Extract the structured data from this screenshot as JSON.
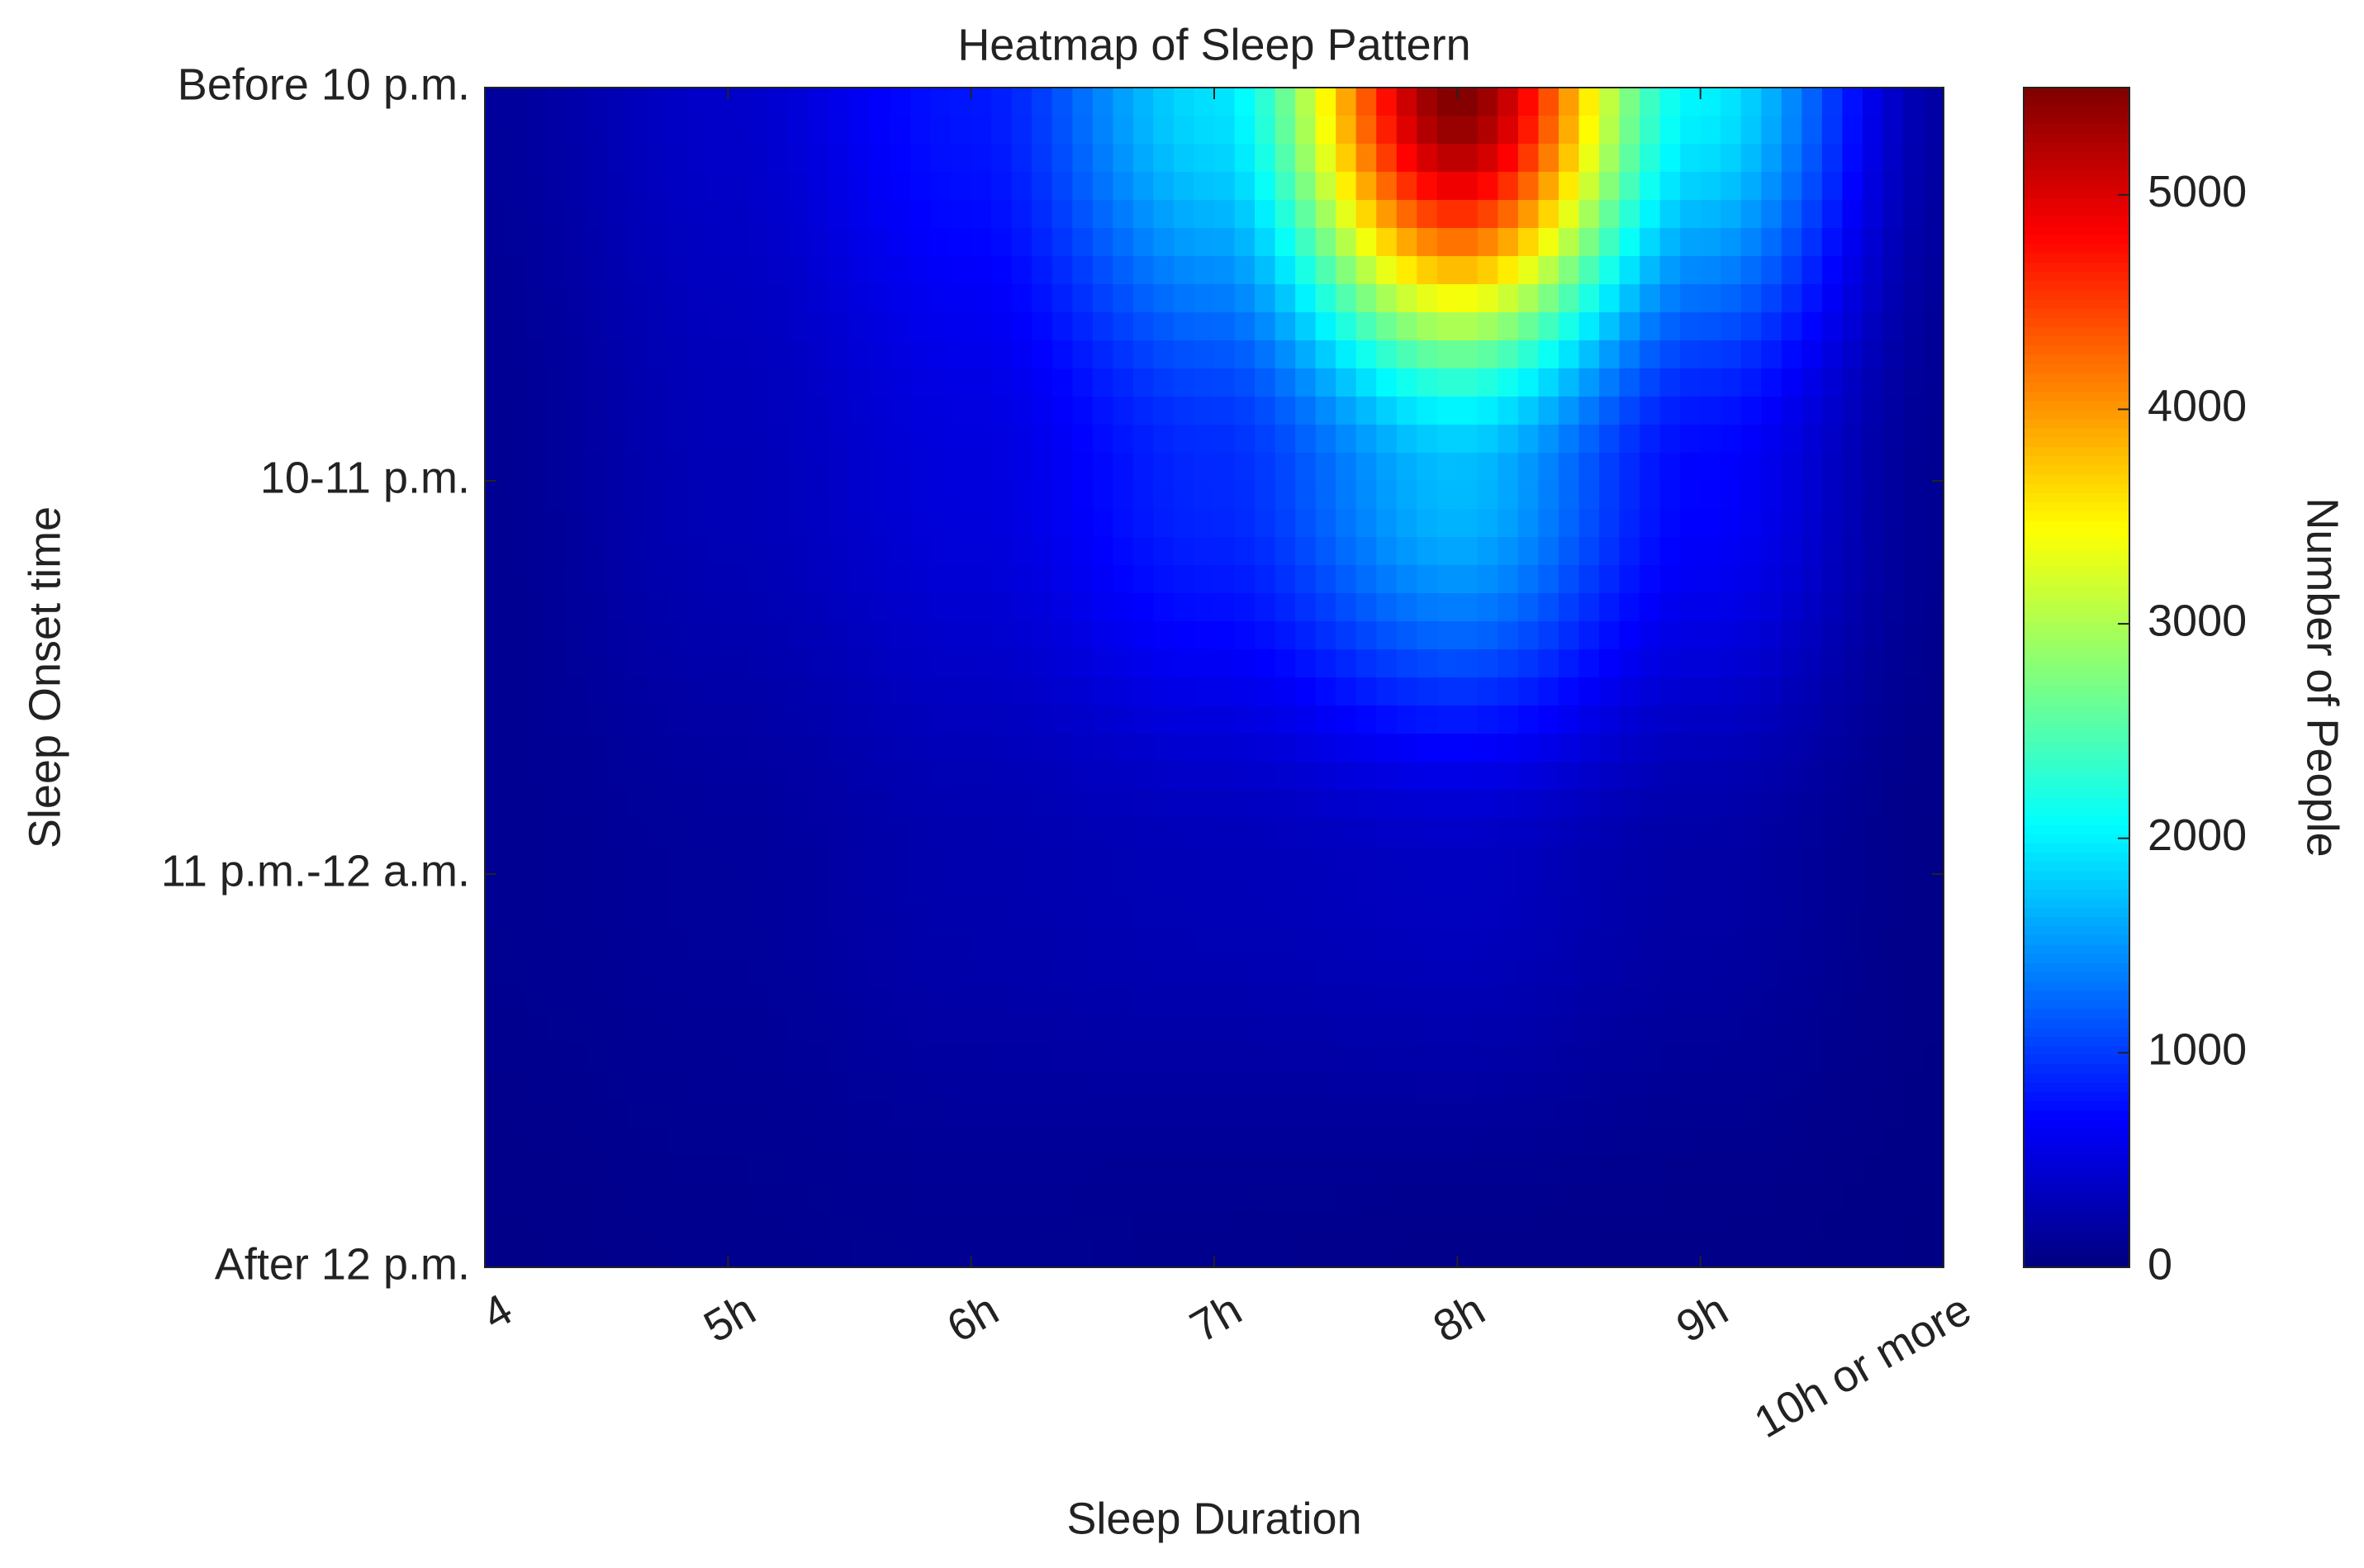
{
  "chart_data": {
    "type": "heatmap",
    "title": "Heatmap of Sleep Pattern",
    "xlabel": "Sleep Duration",
    "ylabel": "Sleep Onset time",
    "x": [
      "4",
      "5h",
      "6h",
      "7h",
      "8h",
      "9h",
      "10h or more"
    ],
    "y": [
      "Before 10 p.m.",
      "10-11 p.m.",
      "11 p.m.-12 a.m.",
      "After 12 p.m."
    ],
    "values": [
      [
        150,
        400,
        800,
        1900,
        5500,
        2000,
        200
      ],
      [
        100,
        300,
        500,
        900,
        1700,
        700,
        100
      ],
      [
        100,
        150,
        250,
        300,
        350,
        200,
        50
      ],
      [
        50,
        80,
        100,
        80,
        60,
        50,
        30
      ]
    ],
    "colormap": "jet",
    "colorbar": {
      "label": "Number of People",
      "lim": [
        0,
        5500
      ],
      "ticks": [
        0,
        1000,
        2000,
        3000,
        4000,
        5000
      ]
    }
  }
}
